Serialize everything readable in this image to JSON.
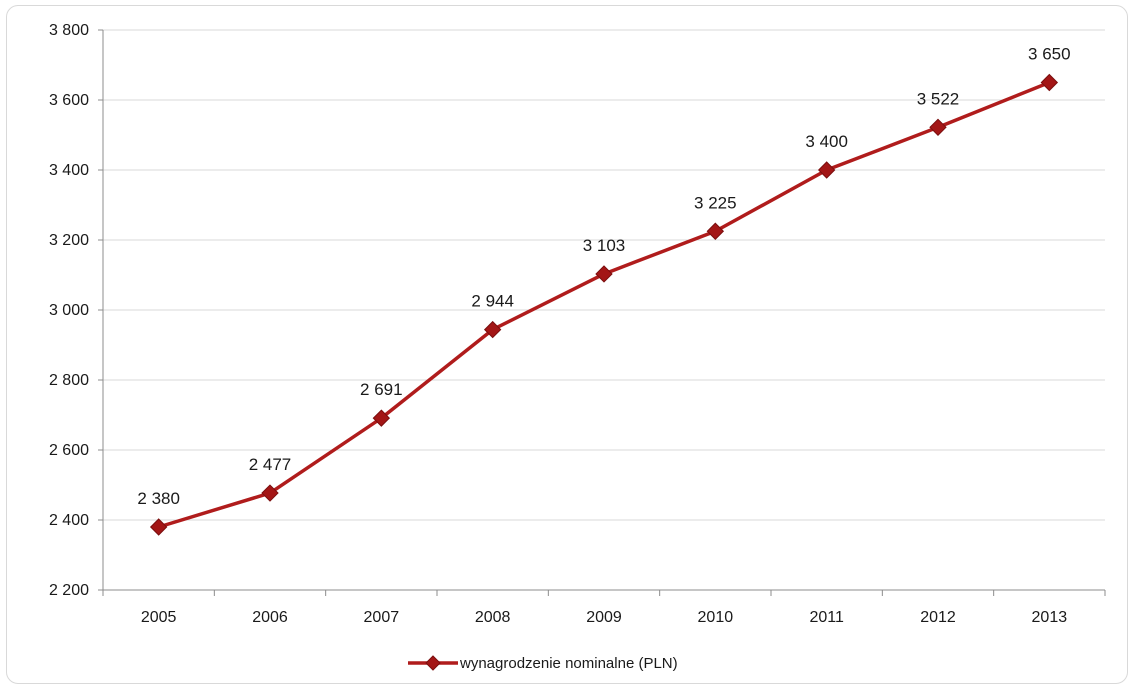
{
  "chart_data": {
    "type": "line",
    "categories": [
      "2005",
      "2006",
      "2007",
      "2008",
      "2009",
      "2010",
      "2011",
      "2012",
      "2013"
    ],
    "series": [
      {
        "name": "wynagrodzenie nominalne (PLN)",
        "values": [
          2380,
          2477,
          2691,
          2944,
          3103,
          3225,
          3400,
          3522,
          3650
        ],
        "data_labels": [
          "2 380",
          "2 477",
          "2 691",
          "2 944",
          "3 103",
          "3 225",
          "3 400",
          "3 522",
          "3 650"
        ],
        "color": "#b01c1c",
        "marker": "diamond"
      }
    ],
    "ylim": [
      2200,
      3800
    ],
    "yticks": [
      2200,
      2400,
      2600,
      2800,
      3000,
      3200,
      3400,
      3600,
      3800
    ],
    "ytick_labels": [
      "2 200",
      "2 400",
      "2 600",
      "2 800",
      "3 000",
      "3 200",
      "3 400",
      "3 600",
      "3 800"
    ],
    "grid": true,
    "legend_position": "bottom",
    "title": "",
    "xlabel": "",
    "ylabel": ""
  },
  "colors": {
    "line": "#b01c1c",
    "marker": "#a31616",
    "grid": "#d9d9d9",
    "axis": "#8c8c8c"
  }
}
